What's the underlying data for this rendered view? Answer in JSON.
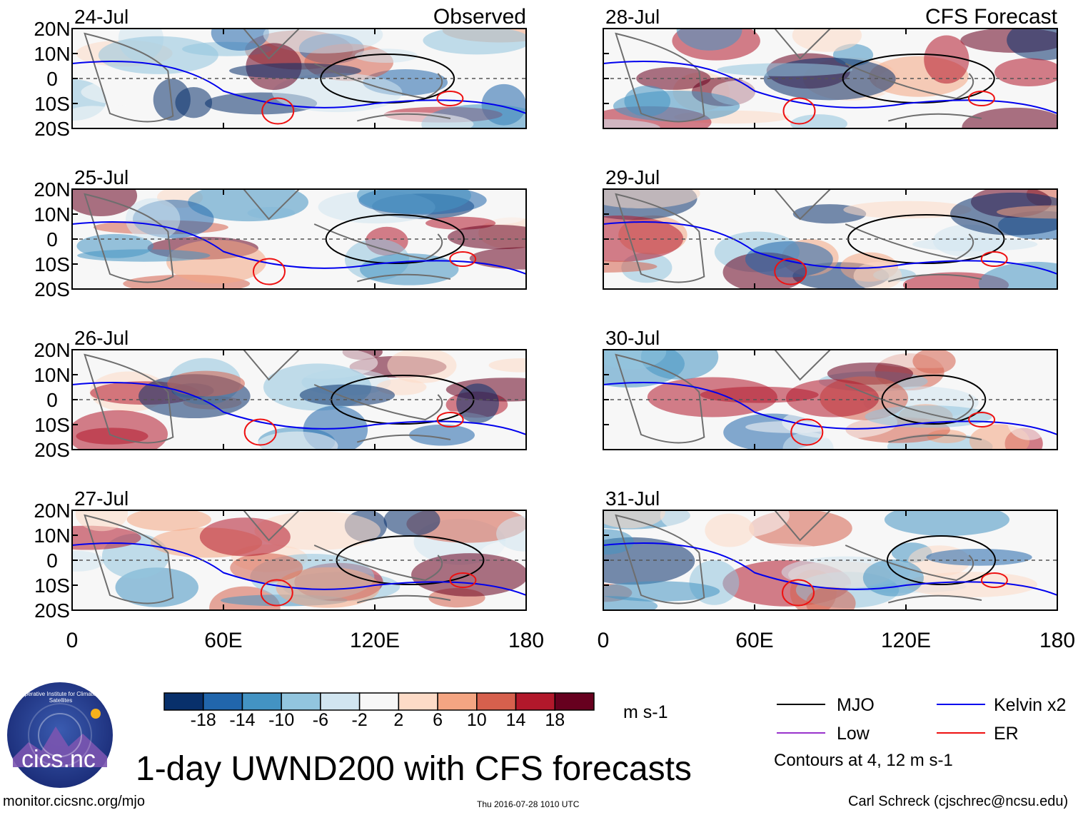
{
  "chart_data": {
    "type": "heatmap",
    "title": "1-day UWND200 with CFS forecasts",
    "variable": "UWND200",
    "units": "m s-1",
    "column_titles": [
      "Observed",
      "CFS Forecast"
    ],
    "x_ticks": [
      "0",
      "60E",
      "120E",
      "180"
    ],
    "xlim": [
      0,
      180
    ],
    "y_ticks": [
      "20N",
      "10N",
      "0",
      "10S",
      "20S"
    ],
    "ylim": [
      -20,
      20
    ],
    "panels": [
      {
        "date": "24-Jul",
        "source": "Observed"
      },
      {
        "date": "25-Jul",
        "source": "Observed"
      },
      {
        "date": "26-Jul",
        "source": "Observed"
      },
      {
        "date": "27-Jul",
        "source": "Observed"
      },
      {
        "date": "28-Jul",
        "source": "CFS Forecast"
      },
      {
        "date": "29-Jul",
        "source": "CFS Forecast"
      },
      {
        "date": "30-Jul",
        "source": "CFS Forecast"
      },
      {
        "date": "31-Jul",
        "source": "CFS Forecast"
      }
    ],
    "colorbar": {
      "levels": [
        "-18",
        "-14",
        "-10",
        "-6",
        "-2",
        "2",
        "6",
        "10",
        "14",
        "18"
      ],
      "colors": [
        "#08306b",
        "#2166ac",
        "#4393c3",
        "#92c5de",
        "#d1e5f0",
        "#f7f7f7",
        "#fddbc7",
        "#f4a582",
        "#d6604d",
        "#b2182b",
        "#67001f"
      ]
    },
    "contours": {
      "note": "Contours at 4, 12 m s-1",
      "series": [
        {
          "name": "MJO",
          "color": "#000000"
        },
        {
          "name": "Kelvin x2",
          "color": "#0000ee"
        },
        {
          "name": "Low",
          "color": "#9933cc"
        },
        {
          "name": "ER",
          "color": "#ee1111"
        }
      ]
    }
  },
  "footer": {
    "logo_text": "cics.nc",
    "logo_ring": "Cooperative Institute for Climate and Satellites",
    "url": "monitor.cicsnc.org/mjo",
    "timestamp": "Thu 2016-07-28 1010 UTC",
    "author": "Carl Schreck (cjschrec@ncsu.edu)"
  }
}
